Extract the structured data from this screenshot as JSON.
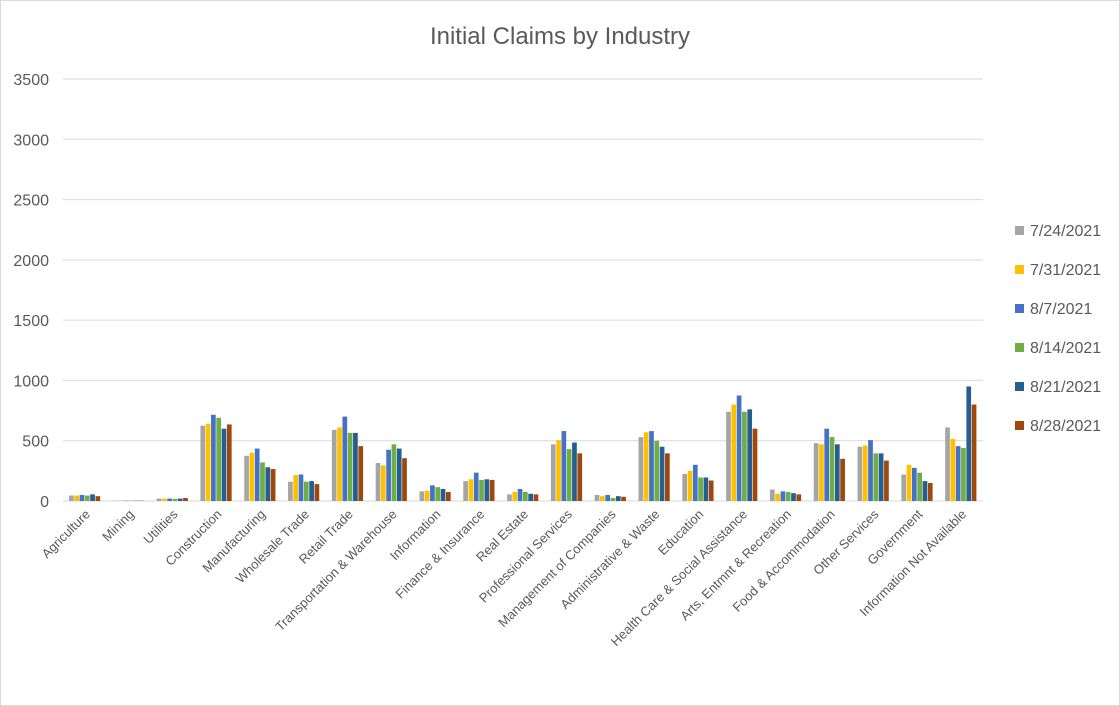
{
  "chart_data": {
    "type": "bar",
    "title": "Initial Claims by Industry",
    "xlabel": "",
    "ylabel": "",
    "ylim": [
      0,
      3500
    ],
    "yticks": [
      0,
      500,
      1000,
      1500,
      2000,
      2500,
      3000,
      3500
    ],
    "grid": true,
    "legend_position": "right",
    "categories": [
      "Agriculture",
      "Mining",
      "Utilities",
      "Construction",
      "Manufacturing",
      "Wholesale Trade",
      "Retail Trade",
      "Transportation & Warehouse",
      "Information",
      "Finance & Insurance",
      "Real Estate",
      "Professional Services",
      "Management of Companies",
      "Administrative & Waste",
      "Education",
      "Health Care & Social Assistance",
      "Arts, Entmnt & Recreation",
      "Food & Accommodation",
      "Other Services",
      "Government",
      "Information Not Available"
    ],
    "series": [
      {
        "name": "7/24/2021",
        "color": "#a5a5a5",
        "values": [
          45,
          3,
          20,
          625,
          375,
          160,
          590,
          315,
          80,
          165,
          55,
          470,
          50,
          530,
          225,
          740,
          95,
          480,
          450,
          220,
          610
        ]
      },
      {
        "name": "7/31/2021",
        "color": "#ffc000",
        "values": [
          45,
          3,
          20,
          640,
          400,
          215,
          610,
          295,
          85,
          180,
          75,
          505,
          40,
          570,
          250,
          800,
          60,
          470,
          460,
          300,
          515
        ]
      },
      {
        "name": "8/7/2021",
        "color": "#4472c4",
        "values": [
          50,
          3,
          20,
          715,
          435,
          220,
          700,
          425,
          130,
          235,
          100,
          580,
          50,
          580,
          300,
          875,
          80,
          600,
          505,
          275,
          455
        ]
      },
      {
        "name": "8/14/2021",
        "color": "#70ad47",
        "values": [
          45,
          3,
          18,
          690,
          320,
          160,
          565,
          470,
          115,
          175,
          75,
          430,
          25,
          500,
          195,
          740,
          75,
          530,
          395,
          235,
          440
        ]
      },
      {
        "name": "8/21/2021",
        "color": "#255e91",
        "values": [
          55,
          3,
          20,
          600,
          280,
          165,
          565,
          435,
          100,
          180,
          60,
          485,
          40,
          450,
          195,
          760,
          65,
          470,
          395,
          165,
          950
        ]
      },
      {
        "name": "8/28/2021",
        "color": "#9e480e",
        "values": [
          40,
          3,
          25,
          635,
          265,
          140,
          455,
          355,
          75,
          175,
          55,
          395,
          35,
          395,
          170,
          600,
          55,
          350,
          335,
          150,
          800
        ]
      }
    ]
  }
}
